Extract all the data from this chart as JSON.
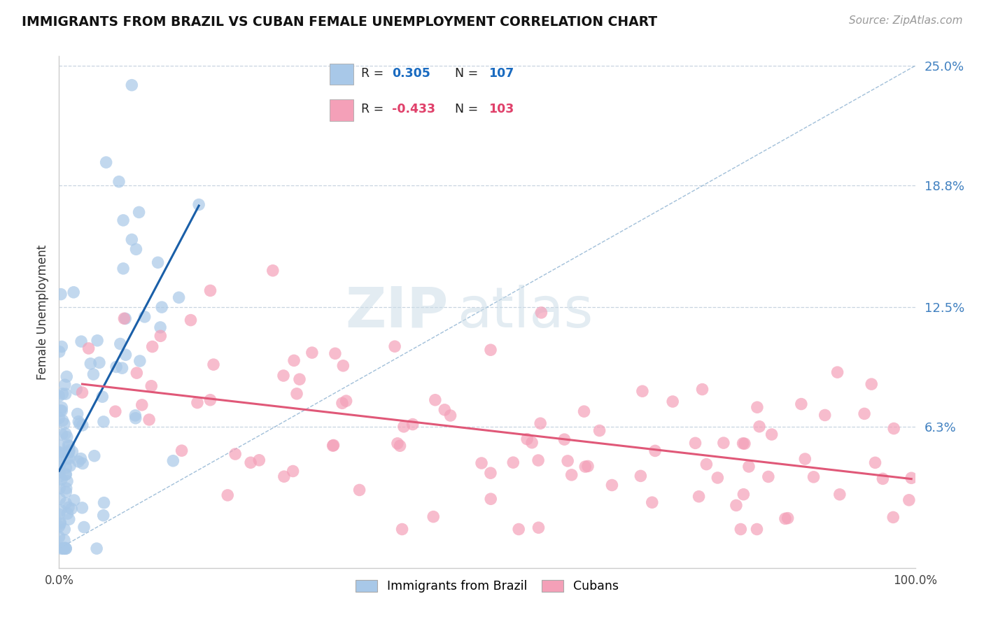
{
  "title": "IMMIGRANTS FROM BRAZIL VS CUBAN FEMALE UNEMPLOYMENT CORRELATION CHART",
  "source_text": "Source: ZipAtlas.com",
  "ylabel": "Female Unemployment",
  "legend_labels": [
    "Immigrants from Brazil",
    "Cubans"
  ],
  "r_brazil": 0.305,
  "n_brazil": 107,
  "r_cuban": -0.433,
  "n_cuban": 103,
  "xmin": 0.0,
  "xmax": 1.0,
  "ymin": 0.0,
  "ymax": 0.25,
  "yticks": [
    0.0,
    0.063,
    0.125,
    0.188,
    0.25
  ],
  "ytick_labels": [
    "",
    "6.3%",
    "12.5%",
    "18.8%",
    "25.0%"
  ],
  "xtick_labels": [
    "0.0%",
    "100.0%"
  ],
  "brazil_color": "#a8c8e8",
  "cuban_color": "#f4a0b8",
  "brazil_line_color": "#1a5fa8",
  "cuban_line_color": "#e05878",
  "brazil_R_color": "#1a6bc0",
  "cuban_R_color": "#e0406a",
  "diag_line_color": "#b0c4d8",
  "grid_color": "#c8d4e0",
  "background_color": "#ffffff",
  "watermark_zip_color": "#c8d8e8",
  "watermark_atlas_color": "#c8d8e8"
}
